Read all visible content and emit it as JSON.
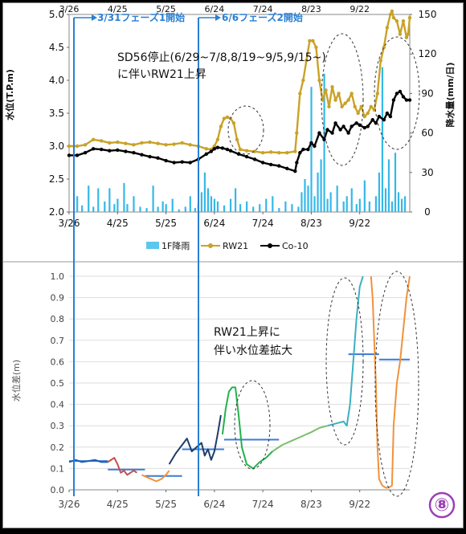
{
  "page": {
    "badge": "⑧"
  },
  "chart_data": [
    {
      "type": "line",
      "yaxis_left": {
        "label": "水位(T.P.m)",
        "min": 2.0,
        "max": 5.0,
        "ticks": [
          "2.0",
          "2.5",
          "3.0",
          "3.5",
          "4.0",
          "4.5",
          "5.0"
        ]
      },
      "yaxis_right": {
        "label": "降水量(mm/日)",
        "min": 0,
        "max": 150,
        "ticks": [
          "0",
          "30",
          "60",
          "90",
          "120",
          "150"
        ]
      },
      "xaxis": {
        "ticks_top": [
          "3/26",
          "4/25",
          "5/25",
          "6/24",
          "7/24",
          "8/23",
          "9/22"
        ],
        "ticks_bottom": [
          "3/26",
          "4/25",
          "5/25",
          "6/24",
          "7/24",
          "8/23",
          "9/22"
        ]
      },
      "legend": {
        "position": "bottom",
        "items": [
          "1F降雨",
          "RW21",
          "Co-10"
        ]
      },
      "annotations": {
        "phase1": "3/31フェーズ1開始",
        "phase2": "6/6フェーズ2開始",
        "note_line1": "SD56停止(6/29~7/8,8/19~9/5,9/15~)",
        "note_line2": "に伴いRW21上昇"
      },
      "series": [
        {
          "name": "RW21",
          "color": "#c9a227",
          "x": [
            0,
            5,
            10,
            15,
            20,
            25,
            30,
            35,
            40,
            45,
            50,
            55,
            60,
            65,
            70,
            75,
            80,
            85,
            88,
            90,
            92,
            94,
            96,
            98,
            100,
            102,
            104,
            106,
            110,
            115,
            120,
            125,
            130,
            135,
            140,
            141,
            143,
            145,
            147,
            149,
            151,
            153,
            155,
            157,
            159,
            161,
            163,
            165,
            167,
            169,
            171,
            173,
            175,
            177,
            179,
            181,
            183,
            185,
            187,
            189,
            191,
            193,
            195,
            197,
            199,
            200,
            201,
            203,
            205,
            207,
            209,
            210,
            211
          ],
          "y": [
            3.0,
            3.0,
            3.02,
            3.1,
            3.08,
            3.05,
            3.06,
            3.04,
            3.02,
            3.05,
            3.06,
            3.04,
            3.02,
            3.03,
            3.05,
            3.02,
            3.0,
            2.96,
            2.95,
            3.0,
            3.1,
            3.3,
            3.42,
            3.44,
            3.42,
            3.35,
            3.1,
            2.95,
            2.93,
            2.92,
            2.9,
            2.91,
            2.9,
            2.9,
            2.92,
            3.2,
            3.8,
            4.0,
            4.3,
            4.6,
            4.6,
            4.5,
            4.0,
            3.7,
            3.85,
            3.6,
            3.9,
            3.7,
            3.8,
            3.6,
            3.65,
            3.7,
            3.8,
            3.6,
            3.5,
            3.6,
            3.45,
            3.5,
            3.6,
            3.55,
            3.8,
            4.3,
            4.5,
            4.8,
            5.0,
            5.05,
            4.95,
            4.9,
            4.7,
            4.9,
            4.65,
            4.7,
            4.95
          ]
        },
        {
          "name": "Co-10",
          "color": "#000000",
          "x": [
            0,
            5,
            10,
            15,
            20,
            25,
            30,
            35,
            40,
            45,
            50,
            55,
            60,
            65,
            70,
            75,
            80,
            85,
            88,
            90,
            92,
            95,
            98,
            100,
            105,
            110,
            115,
            120,
            125,
            130,
            135,
            140,
            141,
            143,
            145,
            148,
            150,
            152,
            155,
            158,
            160,
            163,
            165,
            168,
            170,
            173,
            175,
            178,
            180,
            183,
            185,
            188,
            190,
            192,
            195,
            197,
            199,
            201,
            203,
            205,
            207,
            209,
            211
          ],
          "y": [
            2.86,
            2.86,
            2.9,
            2.96,
            2.95,
            2.93,
            2.94,
            2.92,
            2.9,
            2.87,
            2.84,
            2.82,
            2.78,
            2.75,
            2.76,
            2.75,
            2.8,
            2.88,
            2.92,
            2.96,
            2.98,
            2.97,
            2.95,
            2.93,
            2.88,
            2.84,
            2.8,
            2.75,
            2.72,
            2.7,
            2.66,
            2.62,
            2.75,
            2.9,
            2.95,
            2.95,
            3.05,
            3.0,
            3.2,
            3.1,
            3.25,
            3.2,
            3.35,
            3.25,
            3.3,
            3.2,
            3.3,
            3.35,
            3.32,
            3.28,
            3.3,
            3.4,
            3.35,
            3.45,
            3.4,
            3.5,
            3.45,
            3.7,
            3.8,
            3.83,
            3.75,
            3.7,
            3.7
          ]
        },
        {
          "name": "1F降雨",
          "color": "#35b8e8",
          "x": [
            5,
            8,
            12,
            15,
            18,
            22,
            25,
            28,
            30,
            34,
            36,
            40,
            44,
            48,
            52,
            55,
            58,
            60,
            64,
            68,
            72,
            75,
            78,
            80,
            82,
            84,
            86,
            88,
            90,
            92,
            96,
            100,
            103,
            106,
            110,
            114,
            118,
            122,
            126,
            130,
            134,
            138,
            142,
            144,
            146,
            148,
            150,
            152,
            154,
            156,
            158,
            160,
            162,
            166,
            170,
            172,
            175,
            178,
            180,
            183,
            186,
            190,
            192,
            194,
            196,
            198,
            200,
            202,
            204,
            206,
            208
          ],
          "rain": [
            12,
            5,
            20,
            4,
            18,
            8,
            18,
            6,
            10,
            22,
            6,
            12,
            4,
            3,
            20,
            4,
            8,
            6,
            10,
            2,
            4,
            12,
            3,
            6,
            15,
            30,
            18,
            12,
            10,
            8,
            5,
            10,
            18,
            6,
            8,
            4,
            6,
            10,
            12,
            3,
            8,
            6,
            4,
            15,
            25,
            20,
            95,
            12,
            30,
            40,
            105,
            10,
            15,
            20,
            8,
            12,
            18,
            6,
            10,
            24,
            8,
            12,
            30,
            110,
            18,
            40,
            8,
            45,
            15,
            10,
            12
          ]
        }
      ]
    },
    {
      "type": "line",
      "yaxis": {
        "label": "水位差(m)",
        "min": 0.0,
        "max": 1.0,
        "ticks": [
          "0.0",
          "0.1",
          "0.2",
          "0.3",
          "0.4",
          "0.5",
          "0.6",
          "0.7",
          "0.8",
          "0.9",
          "1.0"
        ]
      },
      "xaxis": {
        "ticks": [
          "3/26",
          "4/25",
          "5/25",
          "6/24",
          "7/24",
          "8/23",
          "9/22"
        ]
      },
      "annotation": {
        "line1": "RW21上昇に",
        "line2": "伴い水位差拡大"
      },
      "series": [
        {
          "color": "#1f5fb0",
          "x": [
            0,
            4,
            8,
            12,
            16,
            20,
            24
          ],
          "y": [
            0.13,
            0.14,
            0.13,
            0.135,
            0.14,
            0.13,
            0.13
          ]
        },
        {
          "color": "#c0504d",
          "x": [
            24,
            26,
            28,
            30,
            32,
            34,
            36,
            38,
            40,
            42
          ],
          "y": [
            0.13,
            0.14,
            0.15,
            0.12,
            0.08,
            0.09,
            0.07,
            0.08,
            0.09,
            0.08
          ]
        },
        {
          "color": "#f0923c",
          "x": [
            45,
            48,
            51,
            54,
            57,
            60,
            62
          ],
          "y": [
            0.07,
            0.06,
            0.05,
            0.04,
            0.05,
            0.07,
            0.09
          ]
        },
        {
          "color": "#1f3d6b",
          "x": [
            62,
            66,
            70,
            73,
            76,
            79,
            82,
            84,
            86,
            88,
            90,
            92,
            94
          ],
          "y": [
            0.12,
            0.17,
            0.21,
            0.24,
            0.18,
            0.2,
            0.22,
            0.16,
            0.19,
            0.14,
            0.18,
            0.26,
            0.35
          ]
        },
        {
          "color": "#22b24c",
          "x": [
            95,
            97,
            99,
            101,
            103,
            105,
            107,
            110,
            114,
            118,
            122,
            126
          ],
          "y": [
            0.26,
            0.38,
            0.46,
            0.48,
            0.48,
            0.35,
            0.2,
            0.12,
            0.1,
            0.13,
            0.15,
            0.18
          ]
        },
        {
          "color": "#7cbf6b",
          "x": [
            126,
            132,
            138,
            144,
            150,
            155,
            160
          ],
          "y": [
            0.18,
            0.21,
            0.23,
            0.25,
            0.27,
            0.29,
            0.3
          ]
        },
        {
          "color": "#3cb0c0",
          "x": [
            160,
            165,
            170,
            172,
            174,
            176,
            178,
            180,
            182
          ],
          "y": [
            0.3,
            0.31,
            0.32,
            0.3,
            0.4,
            0.6,
            0.8,
            0.95,
            1.0
          ]
        },
        {
          "color": "#f0923c",
          "x": [
            187,
            188,
            189,
            190,
            191,
            192,
            194,
            196,
            198,
            200,
            201,
            203,
            205,
            207,
            209,
            211
          ],
          "y": [
            1.0,
            0.9,
            0.7,
            0.5,
            0.2,
            0.05,
            0.02,
            0.01,
            0.01,
            0.02,
            0.3,
            0.5,
            0.6,
            0.75,
            0.9,
            1.0
          ]
        }
      ],
      "steps": [
        {
          "x": [
            0,
            24
          ],
          "y": 0.135
        },
        {
          "x": [
            24,
            47
          ],
          "y": 0.095
        },
        {
          "x": [
            47,
            70
          ],
          "y": 0.065
        },
        {
          "x": [
            70,
            96
          ],
          "y": 0.19
        },
        {
          "x": [
            96,
            130
          ],
          "y": 0.235
        },
        {
          "x": [
            173,
            192
          ],
          "y": 0.635
        },
        {
          "x": [
            192,
            211
          ],
          "y": 0.61
        }
      ]
    }
  ]
}
